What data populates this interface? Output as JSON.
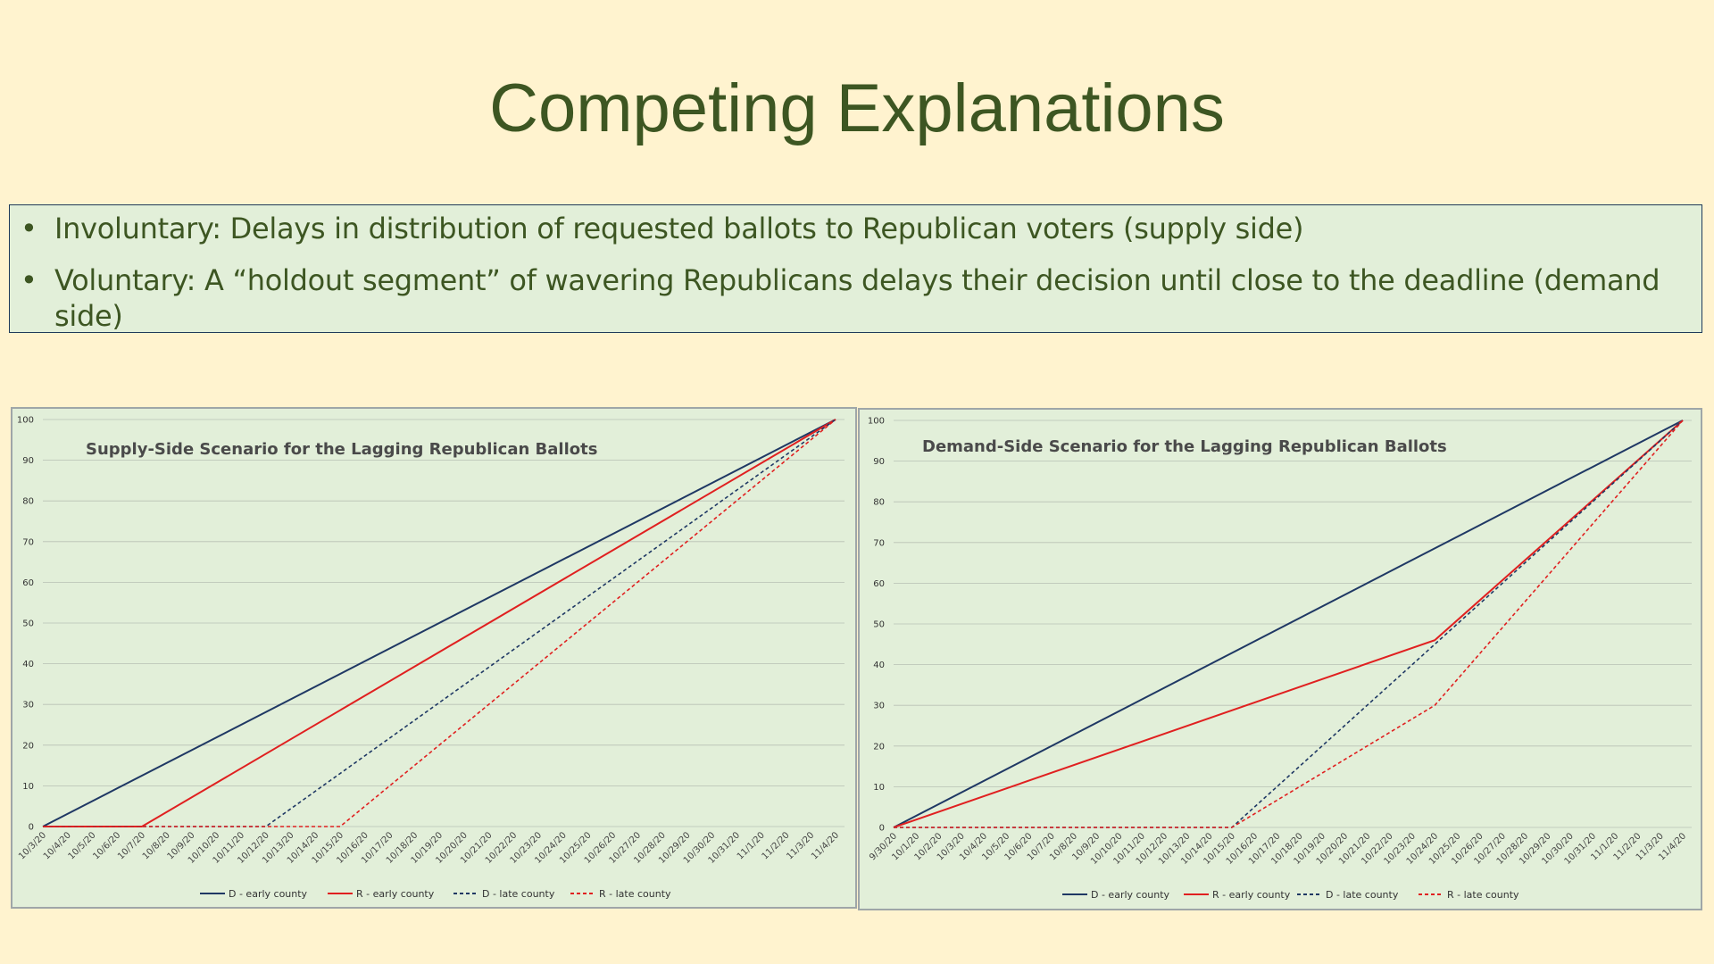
{
  "slide": {
    "title": "Competing Explanations",
    "bullets": [
      "Involuntary: Delays in distribution of requested ballots to Republican voters (supply side)",
      "Voluntary: A “holdout segment” of wavering Republicans delays their decision until close to the deadline (demand side)"
    ]
  },
  "colors": {
    "D": "#1f3864",
    "R": "#e02020",
    "grid": "#b8c0b4"
  },
  "chart_data": [
    {
      "type": "line",
      "title": "Supply-Side Scenario for the Lagging Republican Ballots",
      "ylim": [
        0,
        100
      ],
      "yticks": [
        0,
        10,
        20,
        30,
        40,
        50,
        60,
        70,
        80,
        90,
        100
      ],
      "grid": true,
      "legend": "bottom",
      "categories": [
        "10/3/20",
        "10/4/20",
        "10/5/20",
        "10/6/20",
        "10/7/20",
        "10/8/20",
        "10/9/20",
        "10/10/20",
        "10/11/20",
        "10/12/20",
        "10/13/20",
        "10/14/20",
        "10/15/20",
        "10/16/20",
        "10/17/20",
        "10/18/20",
        "10/19/20",
        "10/20/20",
        "10/21/20",
        "10/22/20",
        "10/23/20",
        "10/24/20",
        "10/25/20",
        "10/26/20",
        "10/27/20",
        "10/28/20",
        "10/29/20",
        "10/30/20",
        "10/31/20",
        "11/1/20",
        "11/2/20",
        "11/3/20",
        "11/4/20"
      ],
      "series": [
        {
          "name": "D - early county",
          "color": "#1f3864",
          "dash": false,
          "points": [
            [
              "10/3/20",
              0
            ],
            [
              "11/4/20",
              100
            ]
          ]
        },
        {
          "name": "R - early county",
          "color": "#e02020",
          "dash": false,
          "points": [
            [
              "10/3/20",
              0
            ],
            [
              "10/7/20",
              0
            ],
            [
              "11/4/20",
              100
            ]
          ]
        },
        {
          "name": "D - late county",
          "color": "#1f3864",
          "dash": true,
          "points": [
            [
              "10/3/20",
              0
            ],
            [
              "10/12/20",
              0
            ],
            [
              "11/4/20",
              100
            ]
          ]
        },
        {
          "name": "R - late county",
          "color": "#e02020",
          "dash": true,
          "points": [
            [
              "10/3/20",
              0
            ],
            [
              "10/15/20",
              0
            ],
            [
              "11/4/20",
              100
            ]
          ]
        }
      ]
    },
    {
      "type": "line",
      "title": "Demand-Side Scenario for the Lagging Republican Ballots",
      "ylim": [
        0,
        100
      ],
      "yticks": [
        0,
        10,
        20,
        30,
        40,
        50,
        60,
        70,
        80,
        90,
        100
      ],
      "grid": true,
      "legend": "bottom",
      "categories": [
        "9/30/20",
        "10/1/20",
        "10/2/20",
        "10/3/20",
        "10/4/20",
        "10/5/20",
        "10/6/20",
        "10/7/20",
        "10/8/20",
        "10/9/20",
        "10/10/20",
        "10/11/20",
        "10/12/20",
        "10/13/20",
        "10/14/20",
        "10/15/20",
        "10/16/20",
        "10/17/20",
        "10/18/20",
        "10/19/20",
        "10/20/20",
        "10/21/20",
        "10/22/20",
        "10/23/20",
        "10/24/20",
        "10/25/20",
        "10/26/20",
        "10/27/20",
        "10/28/20",
        "10/29/20",
        "10/30/20",
        "10/31/20",
        "11/1/20",
        "11/2/20",
        "11/3/20",
        "11/4/20"
      ],
      "series": [
        {
          "name": "D - early county",
          "color": "#1f3864",
          "dash": false,
          "points": [
            [
              "9/30/20",
              0
            ],
            [
              "11/4/20",
              100
            ]
          ]
        },
        {
          "name": "R - early county",
          "color": "#e02020",
          "dash": false,
          "points": [
            [
              "9/30/20",
              0
            ],
            [
              "10/24/20",
              46
            ],
            [
              "11/4/20",
              100
            ]
          ]
        },
        {
          "name": "D - late county",
          "color": "#1f3864",
          "dash": true,
          "points": [
            [
              "9/30/20",
              0
            ],
            [
              "10/15/20",
              0
            ],
            [
              "11/4/20",
              100
            ]
          ]
        },
        {
          "name": "R - late county",
          "color": "#e02020",
          "dash": true,
          "points": [
            [
              "9/30/20",
              0
            ],
            [
              "10/15/20",
              0
            ],
            [
              "10/24/20",
              30
            ],
            [
              "11/4/20",
              100
            ]
          ]
        }
      ]
    }
  ]
}
